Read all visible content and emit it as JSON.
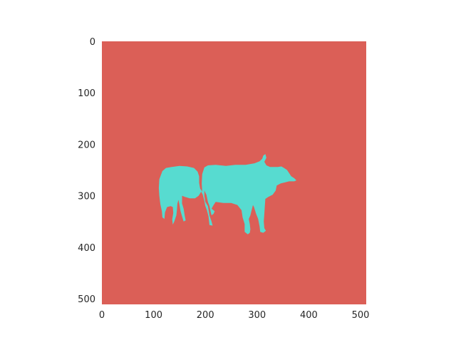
{
  "chart_data": {
    "type": "heatmap",
    "title": "",
    "xlabel": "",
    "ylabel": "",
    "xlim": [
      0,
      511
    ],
    "ylim": [
      511,
      0
    ],
    "x_ticks": [
      0,
      100,
      200,
      300,
      400,
      500
    ],
    "y_ticks": [
      0,
      100,
      200,
      300,
      400,
      500
    ],
    "x_tick_labels": [
      "0",
      "100",
      "200",
      "300",
      "400",
      "500"
    ],
    "y_tick_labels": [
      "0",
      "100",
      "200",
      "300",
      "400",
      "500"
    ],
    "grid": false,
    "classes": [
      {
        "value": 0,
        "color": "#db5f57"
      },
      {
        "value": 1,
        "color": "#57dbd0"
      }
    ],
    "mask_regions": [
      {
        "class": 1,
        "polygon": [
          [
            110,
            285
          ],
          [
            111,
            268
          ],
          [
            117,
            252
          ],
          [
            124,
            246
          ],
          [
            135,
            244
          ],
          [
            150,
            242
          ],
          [
            165,
            243
          ],
          [
            178,
            246
          ],
          [
            185,
            253
          ],
          [
            188,
            262
          ],
          [
            188,
            275
          ],
          [
            190,
            286
          ],
          [
            194,
            292
          ],
          [
            193,
            276
          ],
          [
            194,
            258
          ],
          [
            198,
            245
          ],
          [
            205,
            241
          ],
          [
            220,
            240
          ],
          [
            240,
            242
          ],
          [
            258,
            240
          ],
          [
            278,
            240
          ],
          [
            295,
            237
          ],
          [
            305,
            233
          ],
          [
            310,
            228
          ],
          [
            312,
            222
          ],
          [
            316,
            219
          ],
          [
            318,
            226
          ],
          [
            314,
            234
          ],
          [
            318,
            241
          ],
          [
            325,
            244
          ],
          [
            332,
            244
          ],
          [
            340,
            244
          ],
          [
            347,
            243
          ],
          [
            352,
            246
          ],
          [
            358,
            250
          ],
          [
            362,
            256
          ],
          [
            366,
            262
          ],
          [
            372,
            266
          ],
          [
            376,
            270
          ],
          [
            372,
            272
          ],
          [
            362,
            272
          ],
          [
            354,
            274
          ],
          [
            346,
            276
          ],
          [
            338,
            280
          ],
          [
            336,
            290
          ],
          [
            330,
            298
          ],
          [
            322,
            302
          ],
          [
            316,
            306
          ],
          [
            315,
            320
          ],
          [
            314,
            335
          ],
          [
            313,
            350
          ],
          [
            314,
            363
          ],
          [
            317,
            368
          ],
          [
            312,
            372
          ],
          [
            306,
            370
          ],
          [
            305,
            360
          ],
          [
            302,
            345
          ],
          [
            298,
            335
          ],
          [
            294,
            322
          ],
          [
            292,
            318
          ],
          [
            289,
            330
          ],
          [
            287,
            338
          ],
          [
            284,
            345
          ],
          [
            286,
            355
          ],
          [
            287,
            365
          ],
          [
            286,
            372
          ],
          [
            282,
            375
          ],
          [
            276,
            370
          ],
          [
            276,
            355
          ],
          [
            272,
            342
          ],
          [
            270,
            328
          ],
          [
            262,
            318
          ],
          [
            250,
            314
          ],
          [
            235,
            314
          ],
          [
            220,
            312
          ],
          [
            216,
            318
          ],
          [
            212,
            325
          ],
          [
            218,
            330
          ],
          [
            216,
            335
          ],
          [
            212,
            338
          ],
          [
            210,
            330
          ],
          [
            208,
            320
          ],
          [
            205,
            312
          ],
          [
            202,
            298
          ],
          [
            198,
            290
          ],
          [
            198,
            300
          ],
          [
            200,
            312
          ],
          [
            205,
            320
          ],
          [
            208,
            338
          ],
          [
            212,
            350
          ],
          [
            214,
            358
          ],
          [
            208,
            357
          ],
          [
            206,
            340
          ],
          [
            203,
            328
          ],
          [
            200,
            320
          ],
          [
            198,
            310
          ],
          [
            195,
            298
          ],
          [
            192,
            292
          ],
          [
            187,
            300
          ],
          [
            180,
            305
          ],
          [
            170,
            305
          ],
          [
            160,
            302
          ],
          [
            155,
            300
          ],
          [
            155,
            315
          ],
          [
            158,
            325
          ],
          [
            160,
            338
          ],
          [
            162,
            348
          ],
          [
            158,
            350
          ],
          [
            155,
            340
          ],
          [
            152,
            330
          ],
          [
            150,
            318
          ],
          [
            148,
            308
          ],
          [
            146,
            315
          ],
          [
            145,
            328
          ],
          [
            144,
            338
          ],
          [
            140,
            350
          ],
          [
            137,
            356
          ],
          [
            136,
            346
          ],
          [
            138,
            333
          ],
          [
            137,
            322
          ],
          [
            133,
            320
          ],
          [
            126,
            322
          ],
          [
            122,
            332
          ],
          [
            121,
            345
          ],
          [
            117,
            342
          ],
          [
            116,
            330
          ],
          [
            113,
            316
          ],
          [
            111,
            300
          ]
        ]
      }
    ]
  }
}
